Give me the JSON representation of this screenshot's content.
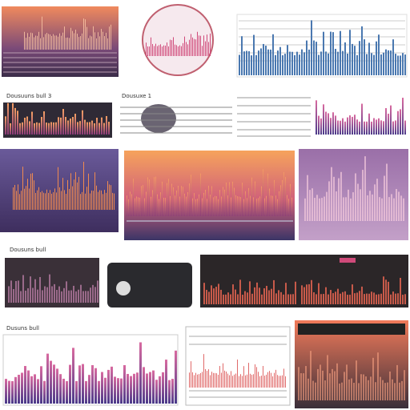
{
  "labels": {
    "top": "Dousuuns bull 3",
    "middle": "Dousuxe 1",
    "lower": "Dousuns bull",
    "bottom": "Dusuns bull"
  }
}
